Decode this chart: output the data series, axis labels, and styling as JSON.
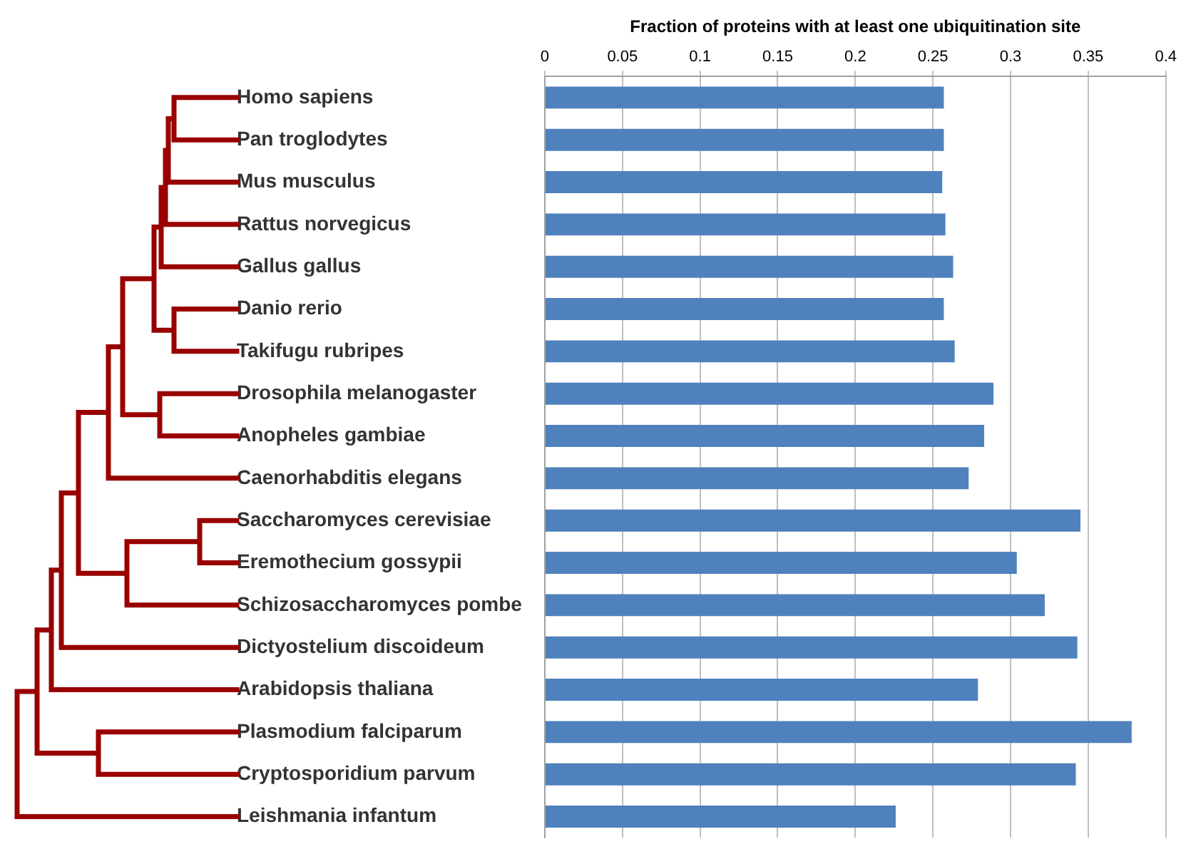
{
  "chart_data": {
    "type": "bar",
    "orientation": "horizontal",
    "xlabel": "Fraction of proteins with at least one ubiquitination site",
    "categories": [
      "Homo sapiens",
      "Pan troglodytes",
      "Mus musculus",
      "Rattus norvegicus",
      "Gallus gallus",
      "Danio rerio",
      "Takifugu rubripes",
      "Drosophila melanogaster",
      "Anopheles gambiae",
      "Caenorhabditis elegans",
      "Saccharomyces cerevisiae",
      "Eremothecium gossypii",
      "Schizosaccharomyces pombe",
      "Dictyostelium discoideum",
      "Arabidopsis thaliana",
      "Plasmodium falciparum",
      "Cryptosporidium parvum",
      "Leishmania infantum"
    ],
    "values": [
      0.257,
      0.257,
      0.256,
      0.258,
      0.263,
      0.257,
      0.264,
      0.289,
      0.283,
      0.273,
      0.345,
      0.304,
      0.322,
      0.343,
      0.279,
      0.378,
      0.342,
      0.226
    ],
    "color": "#4f81bd",
    "xlim": [
      0,
      0.4
    ],
    "xticks": [
      0,
      0.05,
      0.1,
      0.15,
      0.2,
      0.25,
      0.3,
      0.35,
      0.4
    ],
    "grid": "x"
  }
}
